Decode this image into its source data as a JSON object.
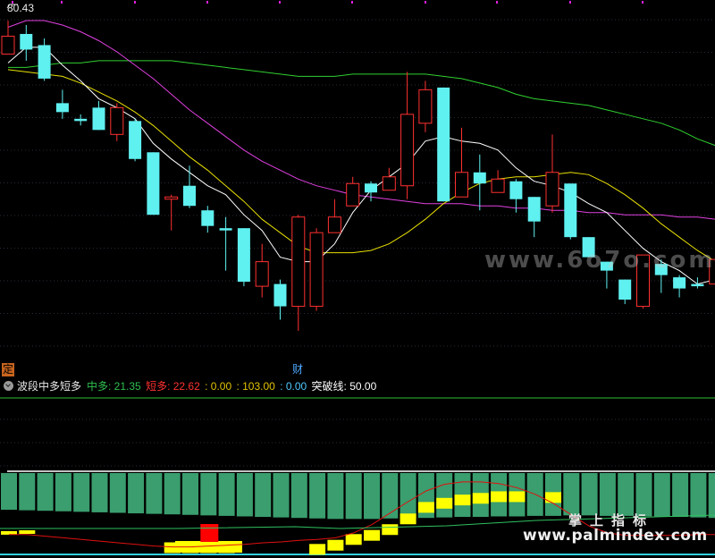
{
  "price_label": "80.43",
  "markers": {
    "ding": "定",
    "cai": "财"
  },
  "indicator": {
    "name": "波段中多短多",
    "items": [
      {
        "label": "中多: ",
        "value": "21.35",
        "color": "#2fbf4f"
      },
      {
        "label": "短多: ",
        "value": "22.62",
        "color": "#ff3030"
      },
      {
        "label": ": ",
        "value": "0.00",
        "color": "#e0c000"
      },
      {
        "label": ": ",
        "value": "103.00",
        "color": "#e0c000"
      },
      {
        "label": ": ",
        "value": "0.00",
        "color": "#4fc8ff"
      },
      {
        "label": "突破线: ",
        "value": "50.00",
        "color": "#ffffff"
      }
    ]
  },
  "watermarks": {
    "center": "www.6o7o.com",
    "brand": "掌上指标",
    "site": "www.palmindex.com"
  },
  "colors": {
    "up": "#ff3030",
    "down": "#5ff0f0",
    "ma5": "#ffffff",
    "ma10": "#e8e000",
    "ma20": "#e040e0",
    "ma60": "#30d030",
    "bar_green": "#3a9e6e",
    "bar_yellow": "#ffff00",
    "bar_red": "#ff0000"
  },
  "chart_data": [
    {
      "type": "candlestick",
      "title": "",
      "ylim": [
        65.5,
        81.0
      ],
      "candles": [
        {
          "o": 78.9,
          "c": 79.7,
          "h": 80.4,
          "l": 78.9
        },
        {
          "o": 79.8,
          "c": 79.1,
          "h": 80.2,
          "l": 78.6
        },
        {
          "o": 79.3,
          "c": 77.8,
          "h": 79.6,
          "l": 77.7
        },
        {
          "o": 76.7,
          "c": 76.3,
          "h": 77.3,
          "l": 76.0
        },
        {
          "o": 76.0,
          "c": 75.9,
          "h": 76.2,
          "l": 75.7
        },
        {
          "o": 76.5,
          "c": 75.5,
          "h": 76.8,
          "l": 75.5
        },
        {
          "o": 75.3,
          "c": 76.5,
          "h": 76.7,
          "l": 75.0
        },
        {
          "o": 75.9,
          "c": 74.2,
          "h": 76.0,
          "l": 74.1
        },
        {
          "o": 74.5,
          "c": 71.7,
          "h": 74.5,
          "l": 71.7
        },
        {
          "o": 72.4,
          "c": 72.5,
          "h": 72.6,
          "l": 71.0
        },
        {
          "o": 73.0,
          "c": 72.1,
          "h": 73.9,
          "l": 72.0
        },
        {
          "o": 71.9,
          "c": 71.2,
          "h": 72.1,
          "l": 70.9
        },
        {
          "o": 71.1,
          "c": 71.0,
          "h": 71.6,
          "l": 69.2
        },
        {
          "o": 71.1,
          "c": 68.7,
          "h": 71.1,
          "l": 68.5
        },
        {
          "o": 68.5,
          "c": 69.6,
          "h": 70.4,
          "l": 68.0
        },
        {
          "o": 68.6,
          "c": 67.6,
          "h": 68.8,
          "l": 67.0
        },
        {
          "o": 67.6,
          "c": 71.6,
          "h": 71.7,
          "l": 66.5
        },
        {
          "o": 67.6,
          "c": 70.9,
          "h": 71.1,
          "l": 67.4
        },
        {
          "o": 70.9,
          "c": 71.6,
          "h": 72.4,
          "l": 70.9
        },
        {
          "o": 72.1,
          "c": 73.1,
          "h": 73.4,
          "l": 72.1
        },
        {
          "o": 73.1,
          "c": 72.7,
          "h": 73.2,
          "l": 72.3
        },
        {
          "o": 72.8,
          "c": 73.4,
          "h": 73.8,
          "l": 72.8
        },
        {
          "o": 73.0,
          "c": 76.2,
          "h": 78.1,
          "l": 72.4
        },
        {
          "o": 75.8,
          "c": 77.3,
          "h": 77.7,
          "l": 75.4
        },
        {
          "o": 77.4,
          "c": 72.3,
          "h": 77.4,
          "l": 72.3
        },
        {
          "o": 72.5,
          "c": 73.6,
          "h": 75.6,
          "l": 72.5
        },
        {
          "o": 73.6,
          "c": 73.1,
          "h": 74.4,
          "l": 71.9
        },
        {
          "o": 72.7,
          "c": 73.3,
          "h": 73.7,
          "l": 72.7
        },
        {
          "o": 73.2,
          "c": 72.4,
          "h": 73.3,
          "l": 71.8
        },
        {
          "o": 72.5,
          "c": 71.4,
          "h": 72.5,
          "l": 70.7
        },
        {
          "o": 72.1,
          "c": 73.6,
          "h": 75.3,
          "l": 71.8
        },
        {
          "o": 73.1,
          "c": 70.7,
          "h": 73.1,
          "l": 70.6
        },
        {
          "o": 70.7,
          "c": 69.8,
          "h": 70.7,
          "l": 69.8
        },
        {
          "o": 69.6,
          "c": 69.2,
          "h": 69.6,
          "l": 68.4
        },
        {
          "o": 68.8,
          "c": 67.9,
          "h": 68.8,
          "l": 67.7
        },
        {
          "o": 67.6,
          "c": 69.9,
          "h": 69.9,
          "l": 67.5
        },
        {
          "o": 69.5,
          "c": 69.0,
          "h": 69.7,
          "l": 68.2
        },
        {
          "o": 68.9,
          "c": 68.4,
          "h": 69.0,
          "l": 68.0
        },
        {
          "o": 68.6,
          "c": 68.5,
          "h": 68.9,
          "l": 68.4
        },
        {
          "o": 68.6,
          "c": 69.7,
          "h": 69.9,
          "l": 68.6
        }
      ],
      "ma5": [
        78.5,
        79.2,
        79.2,
        78.4,
        77.7,
        76.9,
        76.5,
        76.0,
        74.9,
        74.2,
        73.6,
        73.0,
        72.6,
        71.7,
        71.0,
        69.8,
        69.6,
        69.6,
        70.4,
        71.8,
        72.8,
        73.4,
        74.0,
        75.0,
        75.2,
        75.0,
        74.9,
        74.6,
        73.8,
        73.2,
        73.0,
        72.7,
        72.2,
        71.8,
        71.0,
        70.2,
        69.6,
        69.2,
        68.6,
        68.8
      ],
      "ma10": [
        78.2,
        78.1,
        78.0,
        77.9,
        77.6,
        77.2,
        76.8,
        76.3,
        75.7,
        75.0,
        74.3,
        73.7,
        73.0,
        72.3,
        71.5,
        70.9,
        70.3,
        70.0,
        70.0,
        70.0,
        70.1,
        70.4,
        70.9,
        71.5,
        72.2,
        72.7,
        73.1,
        73.3,
        73.4,
        73.4,
        73.5,
        73.6,
        73.5,
        73.1,
        72.6,
        72.0,
        71.3,
        70.7,
        70.1,
        69.6
      ],
      "ma20": [
        80.1,
        80.4,
        80.4,
        80.2,
        79.9,
        79.5,
        79.0,
        78.4,
        77.8,
        77.1,
        76.4,
        75.8,
        75.2,
        74.6,
        74.1,
        73.7,
        73.3,
        73.0,
        72.8,
        72.6,
        72.5,
        72.4,
        72.3,
        72.2,
        72.2,
        72.2,
        72.1,
        72.1,
        72.0,
        72.0,
        71.9,
        71.9,
        71.8,
        71.8,
        71.7,
        71.7,
        71.7,
        71.6,
        71.6,
        71.5
      ],
      "ma60": [
        78.3,
        78.3,
        78.4,
        78.5,
        78.5,
        78.6,
        78.6,
        78.6,
        78.6,
        78.6,
        78.5,
        78.4,
        78.3,
        78.2,
        78.1,
        78.0,
        77.9,
        77.9,
        77.9,
        78.0,
        78.0,
        78.0,
        78.0,
        78.0,
        77.9,
        77.8,
        77.6,
        77.4,
        77.1,
        76.9,
        76.8,
        76.7,
        76.6,
        76.4,
        76.2,
        76.0,
        75.8,
        75.5,
        75.1,
        74.8
      ]
    },
    {
      "type": "bar",
      "title": "波段中多短多",
      "ylim": [
        0,
        100
      ],
      "breakline": 100,
      "green_bars": [
        28,
        27,
        26,
        25,
        24,
        23,
        22,
        21,
        20,
        19,
        18,
        17,
        16,
        15,
        14,
        13,
        12,
        11,
        10,
        10,
        10,
        11,
        11,
        12,
        13,
        14,
        14,
        15,
        15,
        16,
        16,
        17,
        17,
        16,
        16,
        15,
        15,
        14,
        13,
        12
      ],
      "yellow_bars": [
        {
          "i": 0,
          "v": 24
        },
        {
          "i": 1,
          "v": 25
        },
        {
          "i": 9,
          "v": 6
        },
        {
          "i": 10,
          "v": 6
        },
        {
          "i": 11,
          "v": 6
        },
        {
          "i": 12,
          "v": 6
        },
        {
          "i": 17,
          "v": 4
        },
        {
          "i": 18,
          "v": 9
        },
        {
          "i": 19,
          "v": 16
        },
        {
          "i": 20,
          "v": 21
        },
        {
          "i": 21,
          "v": 28
        },
        {
          "i": 22,
          "v": 41
        },
        {
          "i": 23,
          "v": 55
        },
        {
          "i": 24,
          "v": 60
        },
        {
          "i": 25,
          "v": 64
        },
        {
          "i": 26,
          "v": 66
        },
        {
          "i": 27,
          "v": 68
        },
        {
          "i": 28,
          "v": 68
        },
        {
          "i": 30,
          "v": 67
        }
      ],
      "red_bars": [
        {
          "i": 11,
          "v": 18
        }
      ],
      "red_line": [
        22,
        22,
        20,
        18,
        16,
        14,
        12,
        10,
        8,
        7,
        7,
        8,
        9,
        10,
        12,
        13,
        15,
        16,
        18,
        24,
        34,
        48,
        62,
        75,
        83,
        86,
        86,
        84,
        79,
        71,
        60,
        46,
        32,
        24,
        21,
        21,
        21,
        21,
        22,
        22
      ],
      "teal_line": [
        0,
        0,
        0,
        0,
        0,
        0,
        0,
        0,
        0,
        0,
        0,
        0,
        0,
        0,
        0,
        0,
        0,
        0,
        0,
        0,
        0,
        0,
        0,
        0,
        0,
        0,
        0,
        0,
        0,
        0,
        0,
        0,
        0,
        0,
        0,
        0,
        0,
        0,
        0,
        0
      ]
    }
  ]
}
